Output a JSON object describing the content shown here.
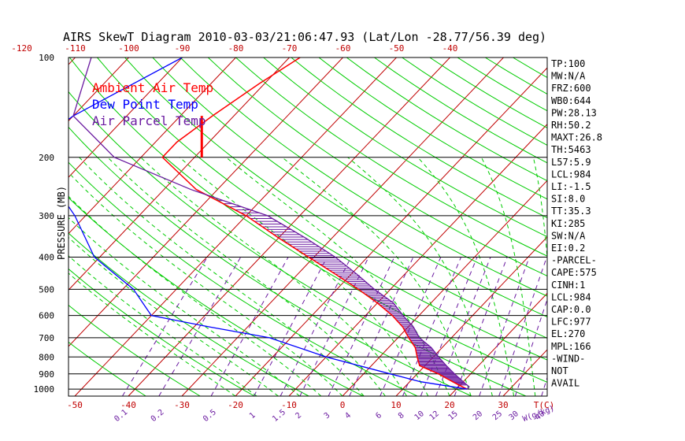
{
  "chart_data": {
    "type": "line",
    "title": "AIRS SkewT Diagram 2010-03-03/21:06:47.93 (Lat/Lon -28.77/56.39 deg)",
    "ylabel": "PRESSURE (MB)",
    "pressure_levels": [
      100,
      200,
      300,
      400,
      500,
      600,
      700,
      800,
      900,
      1000
    ],
    "pressure_range": [
      100,
      1050
    ],
    "top_temp_ticks": [
      "-120",
      "-110",
      "-100",
      "-90",
      "-80",
      "-70",
      "-60",
      "-50",
      "-40"
    ],
    "top_temp_values": [
      -120,
      -110,
      -100,
      -90,
      -80,
      -70,
      -60,
      -50,
      -40
    ],
    "bottom_temp_ticks": [
      "-50",
      "-40",
      "-30",
      "-20",
      "-10",
      "0",
      "10",
      "20",
      "30"
    ],
    "bottom_temp_values": [
      -50,
      -40,
      -30,
      -20,
      -10,
      0,
      10,
      20,
      30
    ],
    "bottom_temp_unit": "T(C)",
    "mixing_ratio_ticks": [
      "0.1",
      "0.2",
      "0.5",
      "1",
      "1.5",
      "2",
      "3",
      "4",
      "6",
      "8",
      "10",
      "12",
      "15",
      "20",
      "25",
      "30",
      "40"
    ],
    "mixing_ratio_unit": "W(g/kg)",
    "legend": [
      {
        "label": "Ambient Air Temp",
        "color": "#ff0000"
      },
      {
        "label": "Dew Point Temp",
        "color": "#0000ff"
      },
      {
        "label": "Air Parcel Temp",
        "color": "#6a1aa0"
      }
    ],
    "series": [
      {
        "name": "Ambient Air Temp",
        "color": "#ff0000",
        "points": [
          [
            100,
            -68
          ],
          [
            120,
            -71
          ],
          [
            150,
            -74
          ],
          [
            180,
            -76
          ],
          [
            200,
            -76
          ],
          [
            250,
            -64
          ],
          [
            300,
            -50
          ],
          [
            350,
            -40
          ],
          [
            400,
            -31
          ],
          [
            450,
            -23
          ],
          [
            500,
            -16
          ],
          [
            550,
            -10
          ],
          [
            600,
            -5
          ],
          [
            650,
            -1
          ],
          [
            700,
            2
          ],
          [
            750,
            5
          ],
          [
            800,
            7
          ],
          [
            850,
            9
          ],
          [
            900,
            14
          ],
          [
            950,
            18
          ],
          [
            975,
            20
          ],
          [
            1000,
            22
          ]
        ]
      },
      {
        "name": "Dew Point Temp",
        "color": "#0000ff",
        "points": [
          [
            100,
            -90
          ],
          [
            150,
            -100
          ],
          [
            180,
            -102
          ],
          [
            200,
            -101
          ],
          [
            250,
            -90
          ],
          [
            300,
            -82
          ],
          [
            400,
            -71
          ],
          [
            500,
            -58
          ],
          [
            600,
            -50
          ],
          [
            650,
            -37
          ],
          [
            700,
            -24
          ],
          [
            800,
            -10
          ],
          [
            900,
            5
          ],
          [
            950,
            12
          ],
          [
            1000,
            22
          ]
        ]
      },
      {
        "name": "Air Parcel Temp",
        "color": "#6a1aa0",
        "points": [
          [
            100,
            -107
          ],
          [
            150,
            -100
          ],
          [
            200,
            -85
          ],
          [
            250,
            -65
          ],
          [
            300,
            -46
          ],
          [
            350,
            -35
          ],
          [
            400,
            -26
          ],
          [
            450,
            -19
          ],
          [
            500,
            -13
          ],
          [
            550,
            -7
          ],
          [
            600,
            -3
          ],
          [
            650,
            1
          ],
          [
            700,
            4
          ],
          [
            750,
            8
          ],
          [
            800,
            11
          ],
          [
            850,
            14
          ],
          [
            900,
            17
          ],
          [
            950,
            20
          ],
          [
            984,
            22
          ],
          [
            1000,
            22
          ]
        ]
      }
    ],
    "tropopause_marker": {
      "t": -76,
      "p_from": 150,
      "p_to": 200,
      "color": "#ff0000"
    },
    "indices": [
      "TP:100",
      "MW:N/A",
      "FRZ:600",
      "WB0:644",
      "PW:28.13",
      "RH:50.2",
      "MAXT:26.8",
      "TH:5463",
      "L57:5.9",
      "LCL:984",
      "LI:-1.5",
      "SI:8.0",
      "TT:35.3",
      "KI:285",
      "SW:N/A",
      "EI:0.2",
      "-PARCEL-",
      "CAPE:575",
      "CINH:1",
      "LCL:984",
      "CAP:0.0",
      "LFC:977",
      "EL:270",
      "MPL:166",
      "-WIND-",
      "NOT",
      "AVAIL"
    ],
    "grid": true,
    "colors": {
      "isotherm": "#c00000",
      "dry_adiabat": "#00cc00",
      "moist_adiabat": "#00cc00",
      "mixing_ratio": "#6a1aa0",
      "isobar": "#000000"
    }
  }
}
